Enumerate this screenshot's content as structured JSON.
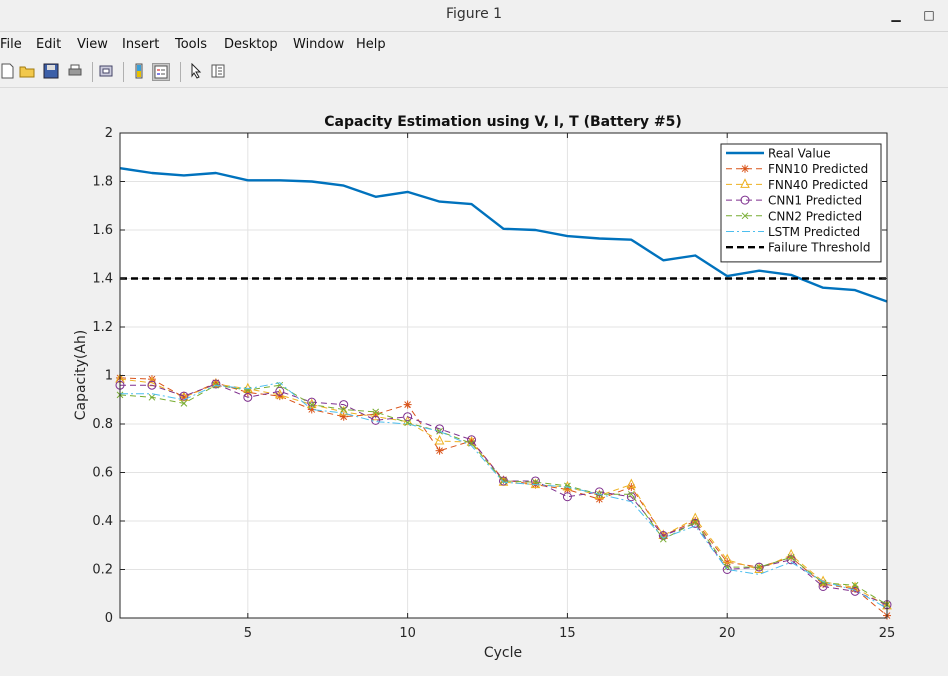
{
  "window": {
    "title": "Figure 1",
    "minimize_icon": "minimize-icon",
    "restore_icon": "restore-icon"
  },
  "menu": [
    "File",
    "Edit",
    "View",
    "Insert",
    "Tools",
    "Desktop",
    "Window",
    "Help"
  ],
  "toolbar": [
    "new-file-icon",
    "open-folder-icon",
    "save-icon",
    "print-icon",
    "print-preview-icon",
    "colorbar-icon",
    "legend-icon",
    "pointer-icon",
    "property-inspector-icon"
  ],
  "chart_data": {
    "type": "line",
    "title": "Capacity Estimation using V, I, T (Battery #5)",
    "xlabel": "Cycle",
    "ylabel": "Capacity(Ah)",
    "xlim": [
      1,
      25
    ],
    "ylim": [
      0,
      2
    ],
    "xticks": [
      "5",
      "10",
      "15",
      "20",
      "25"
    ],
    "yticks": [
      "0",
      "0.2",
      "0.4",
      "0.6",
      "0.8",
      "1",
      "1.2",
      "1.4",
      "1.6",
      "1.8",
      "2"
    ],
    "grid": true,
    "legend_position": "top-right",
    "x": [
      1,
      2,
      3,
      4,
      5,
      6,
      7,
      8,
      9,
      10,
      11,
      12,
      13,
      14,
      15,
      16,
      17,
      18,
      19,
      20,
      21,
      22,
      23,
      24,
      25
    ],
    "series": [
      {
        "name": "Real Value",
        "color": "#0072BD",
        "style": "solid",
        "marker": "none",
        "values": [
          1.855,
          1.835,
          1.825,
          1.835,
          1.805,
          1.805,
          1.8,
          1.783,
          1.737,
          1.757,
          1.717,
          1.707,
          1.605,
          1.6,
          1.575,
          1.565,
          1.56,
          1.475,
          1.495,
          1.41,
          1.432,
          1.415,
          1.362,
          1.352,
          1.305
        ]
      },
      {
        "name": "FNN10 Predicted",
        "color": "#D95319",
        "style": "dashed",
        "marker": "asterisk",
        "values": [
          0.99,
          0.985,
          0.91,
          0.97,
          0.93,
          0.915,
          0.86,
          0.83,
          0.84,
          0.88,
          0.69,
          0.73,
          0.57,
          0.55,
          0.53,
          0.49,
          0.54,
          0.34,
          0.4,
          0.23,
          0.21,
          0.25,
          0.14,
          0.12,
          0.01
        ]
      },
      {
        "name": "FNN40 Predicted",
        "color": "#EDB120",
        "style": "dashed",
        "marker": "triangle",
        "values": [
          0.985,
          0.97,
          0.91,
          0.965,
          0.945,
          0.92,
          0.88,
          0.85,
          0.83,
          0.81,
          0.73,
          0.725,
          0.56,
          0.55,
          0.54,
          0.505,
          0.55,
          0.34,
          0.41,
          0.24,
          0.2,
          0.26,
          0.15,
          0.125,
          0.05
        ]
      },
      {
        "name": "CNN1 Predicted",
        "color": "#7E2F8E",
        "style": "dashed",
        "marker": "circle",
        "values": [
          0.96,
          0.96,
          0.915,
          0.965,
          0.91,
          0.935,
          0.89,
          0.88,
          0.815,
          0.83,
          0.78,
          0.735,
          0.565,
          0.565,
          0.5,
          0.52,
          0.5,
          0.34,
          0.39,
          0.2,
          0.21,
          0.24,
          0.13,
          0.11,
          0.055
        ]
      },
      {
        "name": "CNN2 Predicted",
        "color": "#77AC30",
        "style": "dashed",
        "marker": "x",
        "values": [
          0.92,
          0.91,
          0.885,
          0.96,
          0.94,
          0.96,
          0.88,
          0.86,
          0.85,
          0.805,
          0.77,
          0.72,
          0.565,
          0.56,
          0.545,
          0.51,
          0.51,
          0.325,
          0.395,
          0.21,
          0.21,
          0.25,
          0.145,
          0.135,
          0.055
        ]
      },
      {
        "name": "LSTM Predicted",
        "color": "#4DBEEE",
        "style": "dashdot",
        "marker": "none",
        "values": [
          0.925,
          0.925,
          0.9,
          0.96,
          0.945,
          0.97,
          0.86,
          0.845,
          0.81,
          0.8,
          0.77,
          0.71,
          0.56,
          0.55,
          0.54,
          0.51,
          0.48,
          0.33,
          0.38,
          0.2,
          0.18,
          0.23,
          0.15,
          0.115,
          0.04
        ]
      },
      {
        "name": "Failure Threshold",
        "color": "#000000",
        "style": "dashed-thick",
        "marker": "none",
        "values": [
          1.4,
          1.4,
          1.4,
          1.4,
          1.4,
          1.4,
          1.4,
          1.4,
          1.4,
          1.4,
          1.4,
          1.4,
          1.4,
          1.4,
          1.4,
          1.4,
          1.4,
          1.4,
          1.4,
          1.4,
          1.4,
          1.4,
          1.4,
          1.4,
          1.4
        ]
      }
    ]
  }
}
